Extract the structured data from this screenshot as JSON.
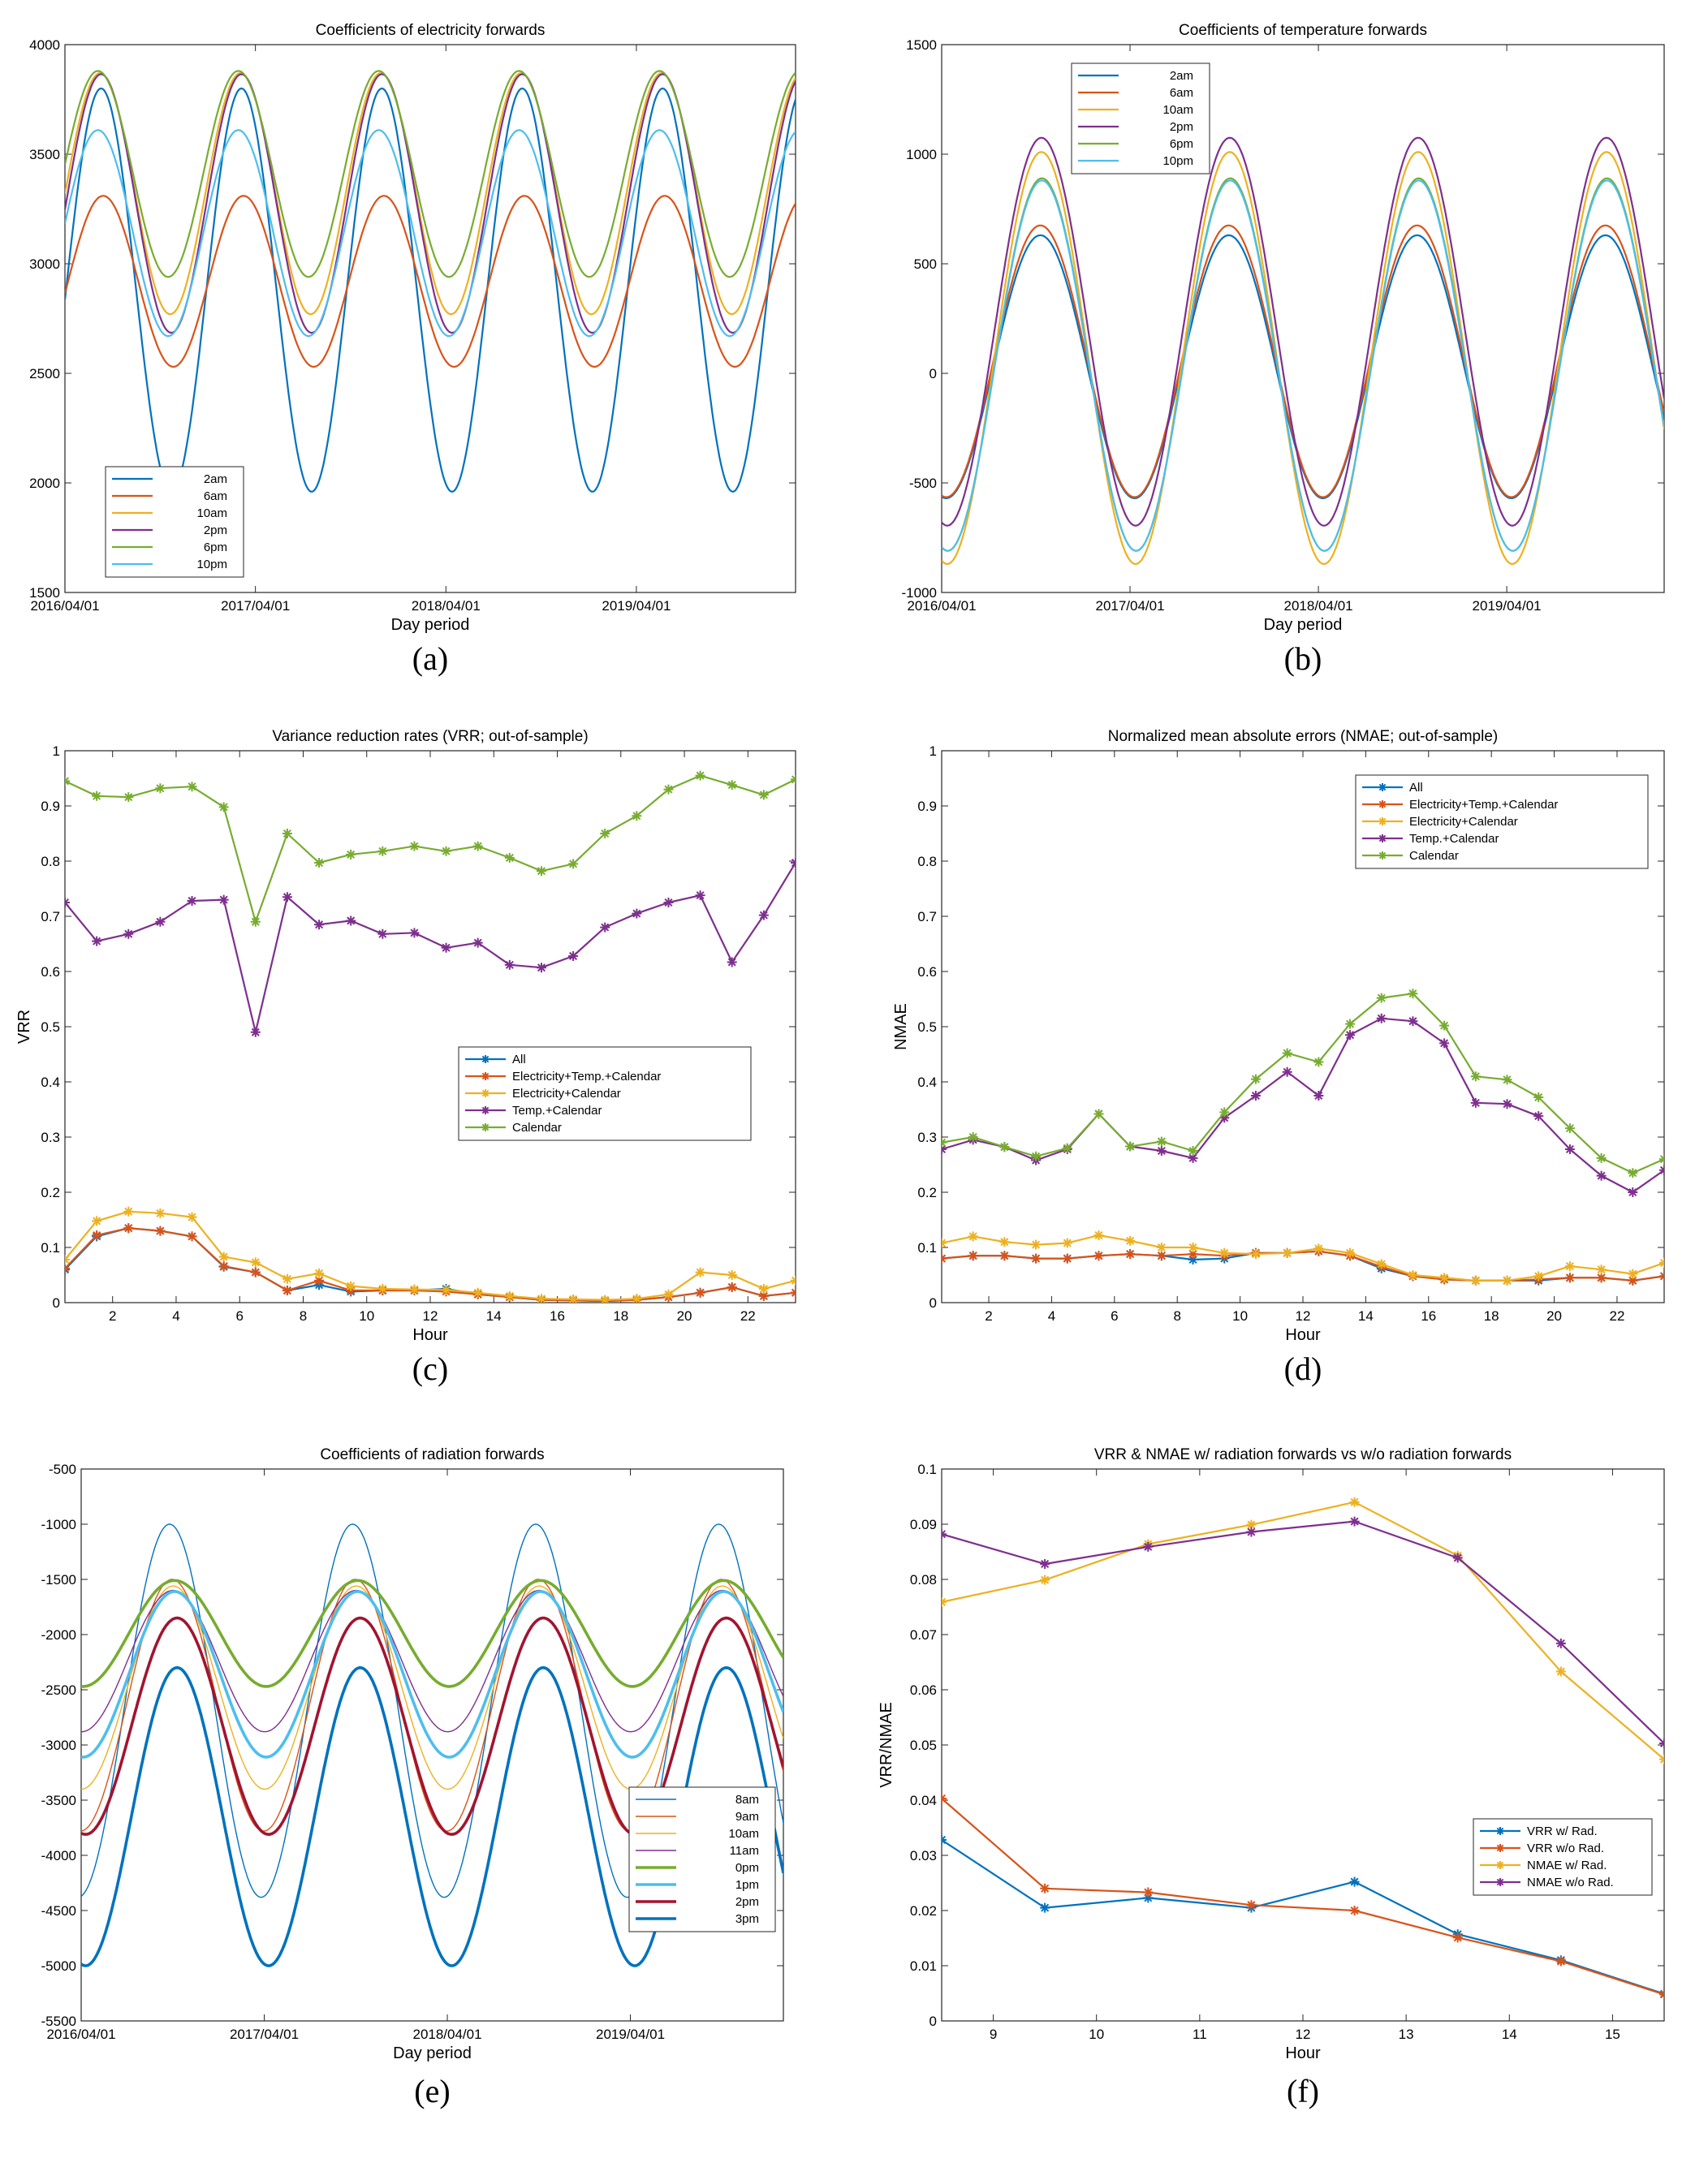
{
  "chart_data": [
    {
      "id": "a",
      "panel_label": "(a)",
      "type": "line",
      "title": "Coefficients of electricity forwards",
      "xlabel": "Day period",
      "ylabel": "",
      "xlim": [
        0,
        1400
      ],
      "ylim": [
        1500,
        4000
      ],
      "xticks": [
        {
          "x": 0,
          "label": "2016/04/01"
        },
        {
          "x": 365,
          "label": "2017/04/01"
        },
        {
          "x": 730,
          "label": "2018/04/01"
        },
        {
          "x": 1095,
          "label": "2019/04/01"
        }
      ],
      "yticks": [
        1500,
        2000,
        2500,
        3000,
        3500,
        4000
      ],
      "legend_position": "bottom-left",
      "series": [
        {
          "name": "2am",
          "color": "#0072BD",
          "width": 2.2,
          "mean": 2880,
          "amp": 920,
          "period": 269,
          "phase_day": 2
        },
        {
          "name": "6am",
          "color": "#D95319",
          "width": 2.2,
          "mean": 2920,
          "amp": 390,
          "period": 269,
          "phase_day": 6
        },
        {
          "name": "10am",
          "color": "#EDB120",
          "width": 2.2,
          "mean": 3320,
          "amp": 550,
          "period": 269,
          "phase_day": 0
        },
        {
          "name": "2pm",
          "color": "#7E2F8E",
          "width": 2.2,
          "mean": 3275,
          "amp": 590,
          "period": 269,
          "phase_day": 2
        },
        {
          "name": "6pm",
          "color": "#77AC30",
          "width": 2.2,
          "mean": 3410,
          "amp": 470,
          "period": 269,
          "phase_day": -4
        },
        {
          "name": "10pm",
          "color": "#4DBEEE",
          "width": 2.2,
          "mean": 3140,
          "amp": 470,
          "period": 269,
          "phase_day": -4
        }
      ]
    },
    {
      "id": "b",
      "panel_label": "(b)",
      "type": "line",
      "title": "Coefficients of temperature forwards",
      "xlabel": "Day period",
      "ylabel": "",
      "xlim": [
        0,
        1400
      ],
      "ylim": [
        -1000,
        1500
      ],
      "xticks": [
        {
          "x": 0,
          "label": "2016/04/01"
        },
        {
          "x": 365,
          "label": "2017/04/01"
        },
        {
          "x": 730,
          "label": "2018/04/01"
        },
        {
          "x": 1095,
          "label": "2019/04/01"
        }
      ],
      "yticks": [
        -1000,
        -500,
        0,
        500,
        1000,
        1500
      ],
      "legend_position": "top-left",
      "series": [
        {
          "name": "2am",
          "color": "#0072BD",
          "width": 2.2,
          "mean": 30,
          "amp": 600,
          "period": 365,
          "phase_day": 100
        },
        {
          "name": "6am",
          "color": "#D95319",
          "width": 2.2,
          "mean": 55,
          "amp": 620,
          "period": 365,
          "phase_day": 100
        },
        {
          "name": "10am",
          "color": "#EDB120",
          "width": 2.2,
          "mean": 70,
          "amp": 940,
          "period": 365,
          "phase_day": 102
        },
        {
          "name": "2pm",
          "color": "#7E2F8E",
          "width": 2.2,
          "mean": 190,
          "amp": 885,
          "period": 365,
          "phase_day": 102
        },
        {
          "name": "6pm",
          "color": "#77AC30",
          "width": 2.2,
          "mean": 40,
          "amp": 850,
          "period": 365,
          "phase_day": 103
        },
        {
          "name": "10pm",
          "color": "#4DBEEE",
          "width": 2.2,
          "mean": 35,
          "amp": 845,
          "period": 365,
          "phase_day": 103
        }
      ]
    },
    {
      "id": "c",
      "panel_label": "(c)",
      "type": "line",
      "title": "Variance reduction rates (VRR; out-of-sample)",
      "xlabel": "Hour",
      "ylabel": "VRR",
      "xlim": [
        0.5,
        23.5
      ],
      "ylim": [
        0,
        1
      ],
      "xticks": [
        {
          "x": 2,
          "label": "2"
        },
        {
          "x": 4,
          "label": "4"
        },
        {
          "x": 6,
          "label": "6"
        },
        {
          "x": 8,
          "label": "8"
        },
        {
          "x": 10,
          "label": "10"
        },
        {
          "x": 12,
          "label": "12"
        },
        {
          "x": 14,
          "label": "14"
        },
        {
          "x": 16,
          "label": "16"
        },
        {
          "x": 18,
          "label": "18"
        },
        {
          "x": 20,
          "label": "20"
        },
        {
          "x": 22,
          "label": "22"
        }
      ],
      "yticks": [
        0,
        0.1,
        0.2,
        0.3,
        0.4,
        0.5,
        0.6,
        0.7,
        0.8,
        0.9,
        1
      ],
      "ytick_labels": [
        "0",
        "0.1",
        "0.2",
        "0.3",
        "0.4",
        "0.5",
        "0.6",
        "0.7",
        "0.8",
        "0.9",
        "1"
      ],
      "legend_position": "middle-right",
      "x": [
        0.5,
        1.5,
        2.5,
        3.5,
        4.5,
        5.5,
        6.5,
        7.5,
        8.5,
        9.5,
        10.5,
        11.5,
        12.5,
        13.5,
        14.5,
        15.5,
        16.5,
        17.5,
        18.5,
        19.5,
        20.5,
        21.5,
        22.5,
        23.5
      ],
      "series": [
        {
          "name": "All",
          "color": "#0072BD",
          "width": 2.2,
          "values": [
            0.06,
            0.12,
            0.135,
            0.13,
            0.12,
            0.065,
            0.055,
            0.022,
            0.032,
            0.02,
            0.022,
            0.022,
            0.025,
            0.015,
            0.01,
            0.005,
            0.004,
            0.003,
            0.005,
            0.01,
            0.018,
            0.028,
            0.012,
            0.018
          ]
        },
        {
          "name": "Electricity+Temp.+Calendar",
          "color": "#D95319",
          "width": 2.2,
          "values": [
            0.062,
            0.122,
            0.135,
            0.13,
            0.12,
            0.066,
            0.055,
            0.022,
            0.04,
            0.022,
            0.022,
            0.022,
            0.02,
            0.015,
            0.01,
            0.005,
            0.004,
            0.003,
            0.005,
            0.01,
            0.018,
            0.028,
            0.012,
            0.018
          ]
        },
        {
          "name": "Electricity+Calendar",
          "color": "#EDB120",
          "width": 2.2,
          "values": [
            0.078,
            0.148,
            0.165,
            0.162,
            0.155,
            0.083,
            0.073,
            0.043,
            0.053,
            0.03,
            0.025,
            0.024,
            0.023,
            0.018,
            0.012,
            0.007,
            0.006,
            0.005,
            0.007,
            0.015,
            0.055,
            0.05,
            0.025,
            0.04
          ]
        },
        {
          "name": "Temp.+Calendar",
          "color": "#7E2F8E",
          "width": 2.2,
          "values": [
            0.725,
            0.655,
            0.668,
            0.69,
            0.728,
            0.73,
            0.49,
            0.735,
            0.685,
            0.692,
            0.668,
            0.67,
            0.643,
            0.652,
            0.612,
            0.607,
            0.628,
            0.68,
            0.705,
            0.725,
            0.738,
            0.617,
            0.702,
            0.797
          ]
        },
        {
          "name": "Calendar",
          "color": "#77AC30",
          "width": 2.2,
          "values": [
            0.945,
            0.918,
            0.916,
            0.932,
            0.935,
            0.898,
            0.69,
            0.85,
            0.797,
            0.812,
            0.818,
            0.827,
            0.818,
            0.827,
            0.806,
            0.782,
            0.795,
            0.85,
            0.882,
            0.93,
            0.955,
            0.938,
            0.92,
            0.948
          ]
        }
      ]
    },
    {
      "id": "d",
      "panel_label": "(d)",
      "type": "line",
      "title": "Normalized mean absolute errors (NMAE; out-of-sample)",
      "xlabel": "Hour",
      "ylabel": "NMAE",
      "xlim": [
        0.5,
        23.5
      ],
      "ylim": [
        0,
        1
      ],
      "xticks": [
        {
          "x": 2,
          "label": "2"
        },
        {
          "x": 4,
          "label": "4"
        },
        {
          "x": 6,
          "label": "6"
        },
        {
          "x": 8,
          "label": "8"
        },
        {
          "x": 10,
          "label": "10"
        },
        {
          "x": 12,
          "label": "12"
        },
        {
          "x": 14,
          "label": "14"
        },
        {
          "x": 16,
          "label": "16"
        },
        {
          "x": 18,
          "label": "18"
        },
        {
          "x": 20,
          "label": "20"
        },
        {
          "x": 22,
          "label": "22"
        }
      ],
      "yticks": [
        0,
        0.1,
        0.2,
        0.3,
        0.4,
        0.5,
        0.6,
        0.7,
        0.8,
        0.9,
        1
      ],
      "ytick_labels": [
        "0",
        "0.1",
        "0.2",
        "0.3",
        "0.4",
        "0.5",
        "0.6",
        "0.7",
        "0.8",
        "0.9",
        "1"
      ],
      "legend_position": "top-right",
      "x": [
        0.5,
        1.5,
        2.5,
        3.5,
        4.5,
        5.5,
        6.5,
        7.5,
        8.5,
        9.5,
        10.5,
        11.5,
        12.5,
        13.5,
        14.5,
        15.5,
        16.5,
        17.5,
        18.5,
        19.5,
        20.5,
        21.5,
        22.5,
        23.5
      ],
      "series": [
        {
          "name": "All",
          "color": "#0072BD",
          "width": 2.2,
          "values": [
            0.08,
            0.085,
            0.085,
            0.08,
            0.08,
            0.085,
            0.088,
            0.085,
            0.078,
            0.08,
            0.09,
            0.09,
            0.093,
            0.085,
            0.062,
            0.048,
            0.042,
            0.04,
            0.04,
            0.04,
            0.045,
            0.045,
            0.04,
            0.048
          ]
        },
        {
          "name": "Electricity+Temp.+Calendar",
          "color": "#D95319",
          "width": 2.2,
          "values": [
            0.08,
            0.085,
            0.085,
            0.08,
            0.08,
            0.085,
            0.088,
            0.085,
            0.088,
            0.085,
            0.09,
            0.09,
            0.093,
            0.085,
            0.065,
            0.048,
            0.042,
            0.04,
            0.04,
            0.042,
            0.045,
            0.045,
            0.04,
            0.048
          ]
        },
        {
          "name": "Electricity+Calendar",
          "color": "#EDB120",
          "width": 2.2,
          "values": [
            0.108,
            0.12,
            0.11,
            0.105,
            0.108,
            0.122,
            0.112,
            0.1,
            0.1,
            0.09,
            0.088,
            0.09,
            0.098,
            0.09,
            0.07,
            0.05,
            0.045,
            0.04,
            0.04,
            0.048,
            0.066,
            0.06,
            0.052,
            0.072
          ]
        },
        {
          "name": "Temp.+Calendar",
          "color": "#7E2F8E",
          "width": 2.2,
          "values": [
            0.278,
            0.295,
            0.282,
            0.258,
            0.278,
            0.342,
            0.283,
            0.275,
            0.262,
            0.335,
            0.375,
            0.418,
            0.375,
            0.485,
            0.515,
            0.51,
            0.47,
            0.362,
            0.36,
            0.338,
            0.278,
            0.23,
            0.2,
            0.24
          ]
        },
        {
          "name": "Calendar",
          "color": "#77AC30",
          "width": 2.2,
          "values": [
            0.29,
            0.3,
            0.282,
            0.265,
            0.28,
            0.342,
            0.283,
            0.292,
            0.275,
            0.345,
            0.405,
            0.452,
            0.436,
            0.505,
            0.552,
            0.56,
            0.502,
            0.41,
            0.404,
            0.372,
            0.316,
            0.262,
            0.235,
            0.26
          ]
        }
      ]
    },
    {
      "id": "e",
      "panel_label": "(e)",
      "type": "line",
      "title": "Coefficients of radiation forwards",
      "xlabel": "Day period",
      "ylabel": "",
      "xlim": [
        0,
        1400
      ],
      "ylim": [
        -5500,
        -500
      ],
      "xticks": [
        {
          "x": 0,
          "label": "2016/04/01"
        },
        {
          "x": 365,
          "label": "2017/04/01"
        },
        {
          "x": 730,
          "label": "2018/04/01"
        },
        {
          "x": 1095,
          "label": "2019/04/01"
        }
      ],
      "yticks": [
        -5500,
        -5000,
        -4500,
        -4000,
        -3500,
        -3000,
        -2500,
        -2000,
        -1500,
        -1000,
        -500
      ],
      "legend_position": "bottom-right",
      "series": [
        {
          "name": "8am",
          "color": "#0072BD",
          "width": 1.4,
          "mean": -2690,
          "amp": 1690,
          "period": 365,
          "phase_day": 85
        },
        {
          "name": "9am",
          "color": "#D95319",
          "width": 1.4,
          "mean": -2640,
          "amp": 1140,
          "period": 365,
          "phase_day": 90
        },
        {
          "name": "10am",
          "color": "#EDB120",
          "width": 1.4,
          "mean": -2480,
          "amp": 920,
          "period": 365,
          "phase_day": 92
        },
        {
          "name": "11am",
          "color": "#7E2F8E",
          "width": 1.4,
          "mean": -2240,
          "amp": 640,
          "period": 365,
          "phase_day": 92
        },
        {
          "name": "0pm",
          "color": "#77AC30",
          "width": 3.6,
          "mean": -1990,
          "amp": 480,
          "period": 365,
          "phase_day": 95
        },
        {
          "name": "1pm",
          "color": "#4DBEEE",
          "width": 3.6,
          "mean": -2360,
          "amp": 750,
          "period": 365,
          "phase_day": 95
        },
        {
          "name": "2pm",
          "color": "#A2142F",
          "width": 3.6,
          "mean": -2830,
          "amp": 980,
          "period": 365,
          "phase_day": 100
        },
        {
          "name": "3pm",
          "color": "#0072BD",
          "width": 3.6,
          "mean": -3650,
          "amp": 1350,
          "period": 365,
          "phase_day": 100
        }
      ]
    },
    {
      "id": "f",
      "panel_label": "(f)",
      "type": "line",
      "title": "VRR & NMAE w/ radiation forwards vs w/o radiation forwards",
      "xlabel": "Hour",
      "ylabel": "VRR/NMAE",
      "xlim": [
        8.5,
        15.5
      ],
      "ylim": [
        0,
        0.1
      ],
      "xticks": [
        {
          "x": 9,
          "label": "9"
        },
        {
          "x": 10,
          "label": "10"
        },
        {
          "x": 11,
          "label": "11"
        },
        {
          "x": 12,
          "label": "12"
        },
        {
          "x": 13,
          "label": "13"
        },
        {
          "x": 14,
          "label": "14"
        },
        {
          "x": 15,
          "label": "15"
        }
      ],
      "yticks": [
        0,
        0.01,
        0.02,
        0.03,
        0.04,
        0.05,
        0.06,
        0.07,
        0.08,
        0.09,
        0.1
      ],
      "ytick_labels": [
        "0",
        "0.01",
        "0.02",
        "0.03",
        "0.04",
        "0.05",
        "0.06",
        "0.07",
        "0.08",
        "0.09",
        "0.1"
      ],
      "legend_position": "bottom-right",
      "x": [
        8.5,
        9.5,
        10.5,
        11.5,
        12.5,
        13.5,
        14.5,
        15.5
      ],
      "series": [
        {
          "name": "VRR w/ Rad.",
          "color": "#0072BD",
          "width": 2.2,
          "values": [
            0.0328,
            0.0205,
            0.0223,
            0.0205,
            0.0252,
            0.0157,
            0.011,
            0.0049
          ]
        },
        {
          "name": "VRR w/o Rad.",
          "color": "#D95319",
          "width": 2.2,
          "values": [
            0.0403,
            0.024,
            0.0233,
            0.021,
            0.02,
            0.0151,
            0.0108,
            0.0048
          ]
        },
        {
          "name": "NMAE w/ Rad.",
          "color": "#EDB120",
          "width": 2.2,
          "values": [
            0.0759,
            0.0799,
            0.0864,
            0.0899,
            0.094,
            0.0843,
            0.0633,
            0.0474
          ]
        },
        {
          "name": "NMAE w/o Rad.",
          "color": "#7E2F8E",
          "width": 2.2,
          "values": [
            0.0882,
            0.0828,
            0.0859,
            0.0886,
            0.0905,
            0.0839,
            0.0684,
            0.0503
          ]
        }
      ]
    }
  ]
}
